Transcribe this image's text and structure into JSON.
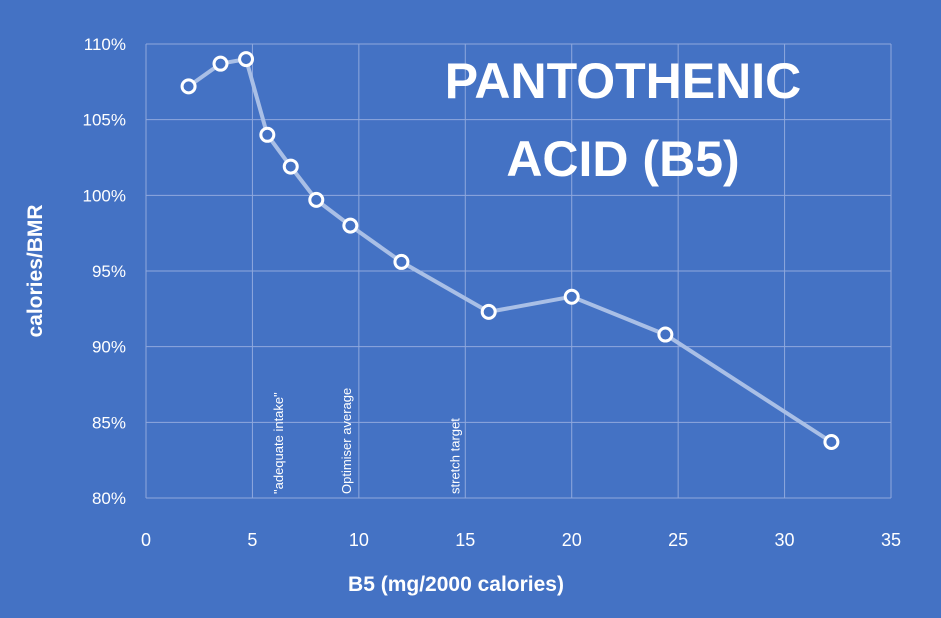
{
  "chart_data": {
    "type": "line",
    "title_lines": [
      "PANTOTHENIC",
      "ACID (B5)"
    ],
    "xlabel": "B5 (mg/2000 calories)",
    "ylabel": "calories/BMR",
    "xlim": [
      0,
      35
    ],
    "ylim": [
      0.8,
      1.1
    ],
    "x_ticks": [
      0,
      5,
      10,
      15,
      20,
      25,
      30,
      35
    ],
    "x_tick_labels": [
      "0",
      "5",
      "10",
      "15",
      "20",
      "25",
      "30",
      "35"
    ],
    "y_ticks": [
      0.8,
      0.85,
      0.9,
      0.95,
      1.0,
      1.05,
      1.1
    ],
    "y_tick_labels": [
      "80%",
      "85%",
      "90%",
      "95%",
      "100%",
      "105%",
      "110%"
    ],
    "grid": true,
    "series": [
      {
        "name": "calories/BMR",
        "x": [
          2.0,
          3.5,
          4.7,
          5.7,
          6.8,
          8.0,
          9.6,
          12.0,
          16.1,
          20.0,
          24.4,
          32.2
        ],
        "y": [
          1.072,
          1.087,
          1.09,
          1.04,
          1.019,
          0.997,
          0.98,
          0.956,
          0.923,
          0.933,
          0.908,
          0.837
        ]
      }
    ],
    "annotations": [
      {
        "text": "\"adequate intake\"",
        "x": 6.2
      },
      {
        "text": "Optimiser average",
        "x": 9.4
      },
      {
        "text": "stretch target",
        "x": 14.5
      }
    ],
    "colors": {
      "background": "#4472c4",
      "line": "#a9bfe6",
      "grid": "#8fa8dd",
      "marker_fill": "#4472c4",
      "marker_stroke": "#ffffff"
    }
  }
}
